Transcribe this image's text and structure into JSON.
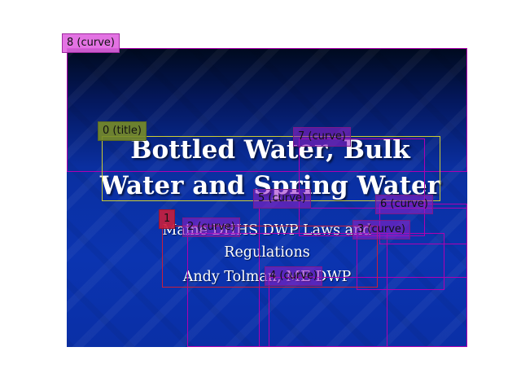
{
  "slide": {
    "title": "Bottled Water, Bulk Water and Spring Water",
    "subtitle": "Maine DHHS DWP Laws and Regulations",
    "author": "Andy Tolman, ME DWP",
    "colors": {
      "background_top": "#000a1e",
      "background_main": "#0b34b0",
      "text": "#ffffff"
    }
  },
  "annotations": {
    "title": "0 (title)",
    "body": "1",
    "curve_2": "2 (curve)",
    "curve_3": "3 (curve)",
    "curve_4": "4 (curve)",
    "curve_5": "5 (curve)",
    "curve_6": "6 (curve)",
    "curve_7": "7 (curve)",
    "curve_8": "8 (curve)",
    "colors": {
      "curve": "#b000b0",
      "title": "#cccc33",
      "body": "#c81e3c"
    }
  }
}
